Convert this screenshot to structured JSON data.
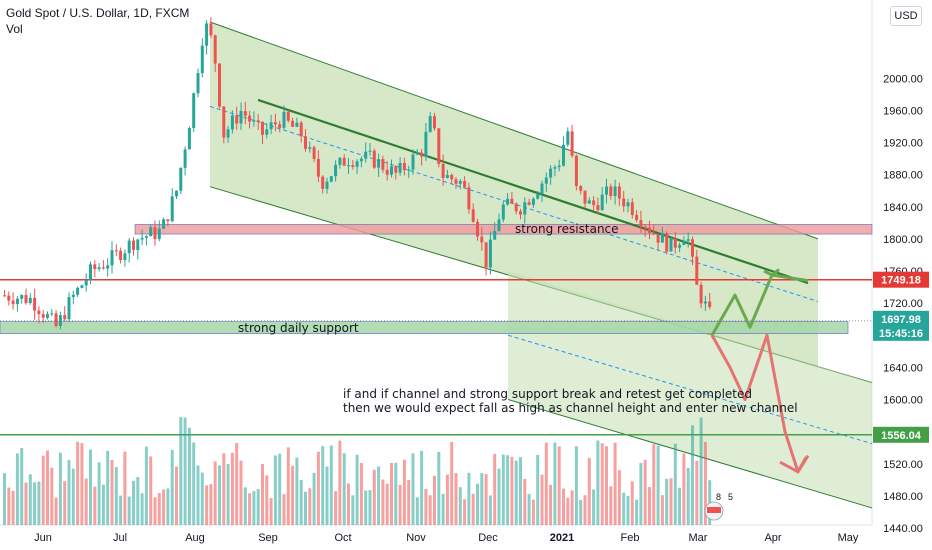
{
  "header": {
    "symbol_line": "Gold Spot / U.S. Dollar, 1D, FXCM",
    "volume_label": "Vol",
    "currency_button": "USD"
  },
  "price_axis": {
    "ticks": [
      "2000.00",
      "1960.00",
      "1920.00",
      "1880.00",
      "1840.00",
      "1800.00",
      "1760.00",
      "1720.00",
      "1640.00",
      "1600.00",
      "1560.00",
      "1520.00",
      "1480.00",
      "1440.00"
    ]
  },
  "time_axis": {
    "ticks": [
      "Jun",
      "Jul",
      "Aug",
      "Sep",
      "Oct",
      "Nov",
      "Dec",
      "2021",
      "Feb",
      "Mar",
      "Apr",
      "May"
    ]
  },
  "price_labels": [
    {
      "text": "1749.18",
      "color": "#e53935"
    },
    {
      "text": "1697.98",
      "color": "#26a69a"
    },
    {
      "text": "15:45:16",
      "color": "#26a69a"
    },
    {
      "text": "1556.04",
      "color": "#43a047"
    }
  ],
  "annotations": {
    "resistance": "strong resistance",
    "support": "strong daily support",
    "note_line1": "if and if channel and strong support break and retest get completed",
    "note_line2": "then we would expect fall as high as channel height and enter new channel"
  },
  "badge": {
    "count_a": "8",
    "count_b": "5"
  },
  "colors": {
    "up": "#26a69a",
    "down": "#ef5350",
    "channel_fill": "#c5deb0",
    "channel_line": "#2e7d32",
    "resistance_fill": "#ef9a9a",
    "support_fill": "#a5d6a7",
    "red_line": "#e53935",
    "green_line": "#43a047"
  },
  "chart_data": {
    "type": "candlestick",
    "title": "Gold Spot / U.S. Dollar, 1D, FXCM",
    "ylim": [
      1440,
      2080
    ],
    "levels": {
      "resistance_zone": [
        1806,
        1818
      ],
      "support_zone": [
        1682,
        1697
      ],
      "red_horizontal": 1749.18,
      "green_horizontal": 1556.04,
      "last_price": 1697.98
    },
    "channel": {
      "x_start": "Aug 2020",
      "y_upper_start": 2070,
      "y_lower_start": 1865,
      "x_end": "Apr 2021",
      "y_upper_end": 1800,
      "y_lower_end": 1640
    },
    "projection_bullish": [
      1680,
      1730,
      1690,
      1755,
      1748
    ],
    "projection_bearish": [
      1680,
      1640,
      1600,
      1680,
      1560,
      1510,
      1530
    ]
  }
}
